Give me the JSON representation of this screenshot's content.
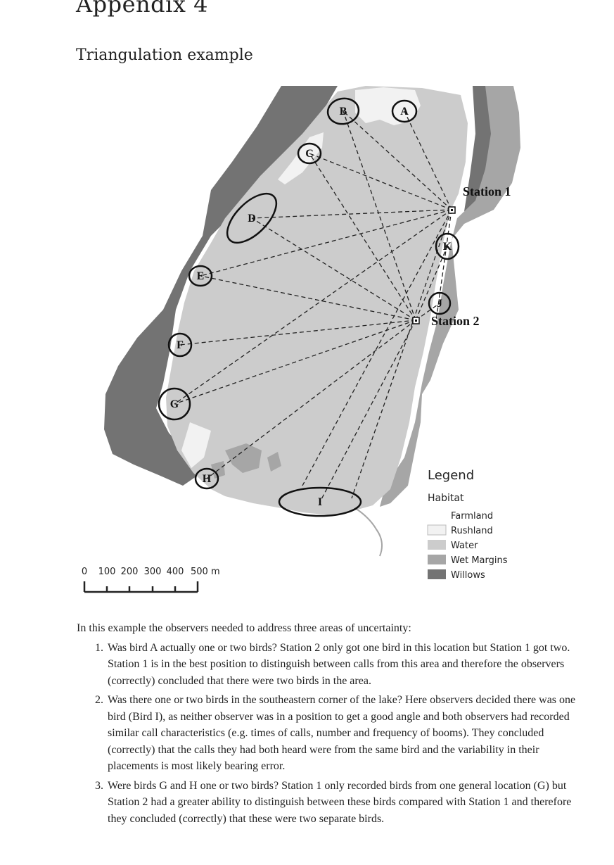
{
  "header": {
    "appendix_title": "Appendix 4",
    "section_title": "Triangulation example"
  },
  "map": {
    "stations": [
      {
        "id": "station-1",
        "label": "Station 1"
      },
      {
        "id": "station-2",
        "label": "Station 2"
      }
    ],
    "birds": [
      "A",
      "B",
      "C",
      "D",
      "E",
      "F",
      "G",
      "H",
      "I",
      "J",
      "K"
    ],
    "legend": {
      "title": "Legend",
      "subtitle": "Habitat",
      "items": [
        {
          "label": "Farmland",
          "color": "#ffffff"
        },
        {
          "label": "Rushland",
          "color": "#f2f2f2"
        },
        {
          "label": "Water",
          "color": "#cccccc"
        },
        {
          "label": "Wet Margins",
          "color": "#a6a6a6"
        },
        {
          "label": "Willows",
          "color": "#737373"
        }
      ]
    },
    "scale_bar": {
      "ticks": [
        "0",
        "100",
        "200",
        "300",
        "400",
        "500 m"
      ]
    }
  },
  "body": {
    "intro": "In this example the observers needed to address three areas of uncertainty:",
    "questions": [
      {
        "number": "1.",
        "text": "Was bird A actually one or two birds? Station 2 only got one bird in this location but Station 1 got two. Station 1 is in the best position to distinguish between calls from this area and therefore the observers (correctly) concluded that there were two birds in the area."
      },
      {
        "number": "2.",
        "text": "Was there one or two birds in the southeastern corner of the lake? Here observers decided there was one bird (Bird I), as neither observer was in a position to get a good angle and both observers had recorded similar call characteristics (e.g. times of calls, number and frequency of booms). They concluded (correctly) that the calls they had both heard were from the same bird and the variability in their placements is most likely bearing error."
      },
      {
        "number": "3.",
        "text": "Were birds G and H one or two birds? Station 1 only recorded birds from one general location (G) but Station 2 had a greater ability to distinguish between these birds compared with Station 1 and therefore they concluded (correctly) that these were two separate birds."
      }
    ]
  }
}
